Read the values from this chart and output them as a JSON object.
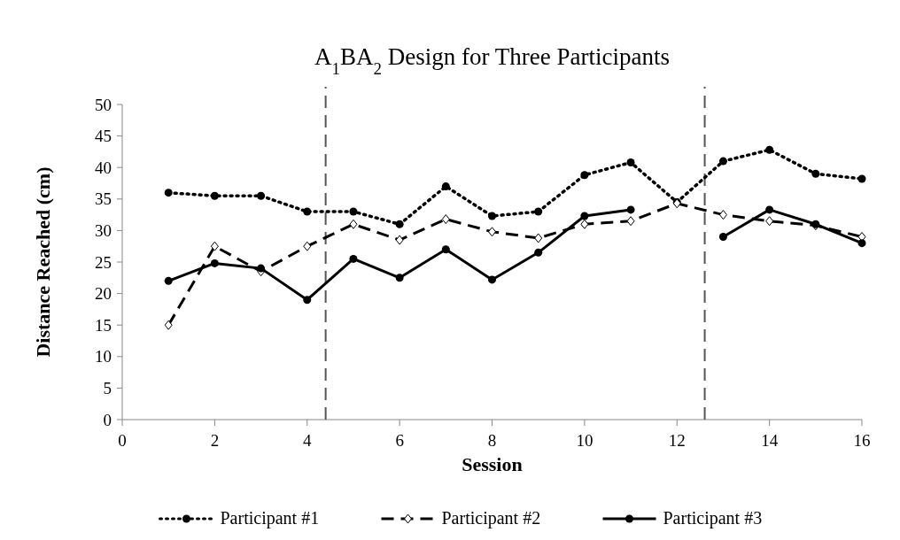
{
  "chart_data": {
    "type": "line",
    "title": "A$_{1}$BA$_{2}$ Design for Three Participants",
    "xlabel": "Session",
    "ylabel": "Distance Reached (cm)",
    "x": [
      1,
      2,
      3,
      4,
      5,
      6,
      7,
      8,
      9,
      10,
      11,
      12,
      13,
      14,
      15,
      16
    ],
    "xlim": [
      0,
      16
    ],
    "xticks": [
      0,
      2,
      4,
      6,
      8,
      10,
      12,
      14,
      16
    ],
    "ylim": [
      0,
      50
    ],
    "yticks": [
      0,
      5,
      10,
      15,
      20,
      25,
      30,
      35,
      40,
      45,
      50
    ],
    "grid": false,
    "legend": "bottom",
    "series": [
      {
        "name": "Participant #1",
        "color": "#000000",
        "line_style": "dotted",
        "marker": "circle",
        "values": [
          36,
          35.5,
          35.5,
          33,
          33,
          31,
          37,
          32.3,
          33,
          38.8,
          40.8,
          34.5,
          41,
          42.8,
          39,
          38.2
        ]
      },
      {
        "name": "Participant #2",
        "color": "#000000",
        "line_style": "dashed",
        "marker": "diamond",
        "values": [
          15,
          27.5,
          23.5,
          27.5,
          31,
          28.5,
          31.8,
          29.8,
          28.8,
          31,
          31.5,
          34.3,
          32.5,
          31.5,
          30.8,
          29
        ]
      },
      {
        "name": "Participant #3",
        "color": "#000000",
        "line_style": "solid",
        "marker": "circle",
        "values": [
          22,
          24.8,
          24,
          19,
          25.5,
          22.5,
          27,
          22.2,
          26.5,
          32.3,
          33.3,
          null,
          29,
          33.3,
          31,
          28
        ]
      }
    ],
    "ref_lines": [
      {
        "axis": "x",
        "value": 4.4,
        "color": "#555555",
        "line_style": "dashed"
      },
      {
        "axis": "x",
        "value": 12.6,
        "color": "#555555",
        "line_style": "dashed"
      }
    ]
  }
}
